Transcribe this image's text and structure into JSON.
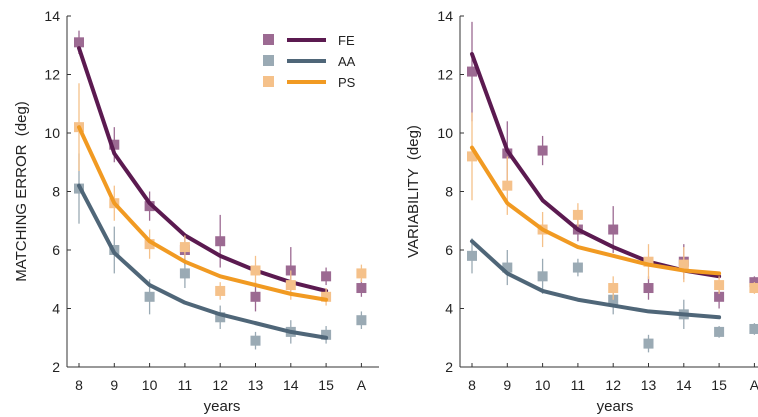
{
  "chart_data": [
    {
      "type": "line",
      "ylabel": "MATCHING ERROR  (deg)",
      "xlabel": "years",
      "categories": [
        "8",
        "9",
        "10",
        "11",
        "12",
        "13",
        "14",
        "15",
        "A"
      ],
      "yticks": [
        2,
        4,
        6,
        8,
        10,
        12,
        14
      ],
      "ylim": [
        2,
        14
      ],
      "legend_position": "top-right",
      "series": [
        {
          "name": "FE",
          "color": "#5b1a50",
          "marker_color": "#9c6a92",
          "fit": [
            12.9,
            9.3,
            7.6,
            6.5,
            5.8,
            5.3,
            4.9,
            4.6
          ],
          "points": [
            13.1,
            9.6,
            7.5,
            6.0,
            6.3,
            4.4,
            5.3,
            5.1,
            4.7
          ],
          "err": [
            0.4,
            0.6,
            0.5,
            0.5,
            0.9,
            0.5,
            0.8,
            0.3,
            0.3
          ]
        },
        {
          "name": "AA",
          "color": "#4f6678",
          "marker_color": "#9aaab4",
          "fit": [
            8.2,
            5.9,
            4.8,
            4.2,
            3.8,
            3.5,
            3.2,
            3.0
          ],
          "points": [
            8.1,
            6.0,
            4.4,
            5.2,
            3.7,
            2.9,
            3.2,
            3.1,
            3.6
          ],
          "err": [
            1.2,
            0.8,
            0.6,
            0.5,
            0.4,
            0.3,
            0.4,
            0.3,
            0.3
          ]
        },
        {
          "name": "PS",
          "color": "#f19a22",
          "marker_color": "#f5c18a",
          "fit": [
            10.2,
            7.6,
            6.3,
            5.6,
            5.1,
            4.8,
            4.5,
            4.3
          ],
          "points": [
            10.2,
            7.6,
            6.2,
            6.1,
            4.6,
            5.3,
            4.8,
            4.4,
            5.2
          ],
          "err": [
            1.5,
            0.6,
            0.5,
            0.4,
            0.3,
            0.5,
            0.5,
            0.3,
            0.3
          ]
        }
      ]
    },
    {
      "type": "line",
      "ylabel": "VARIABILITY  (deg)",
      "xlabel": "years",
      "categories": [
        "8",
        "9",
        "10",
        "11",
        "12",
        "13",
        "14",
        "15",
        "A"
      ],
      "yticks": [
        2,
        4,
        6,
        8,
        10,
        12,
        14
      ],
      "ylim": [
        2,
        14
      ],
      "series": [
        {
          "name": "FE",
          "color": "#5b1a50",
          "marker_color": "#9c6a92",
          "fit": [
            12.7,
            9.4,
            7.7,
            6.7,
            6.1,
            5.6,
            5.3,
            5.1
          ],
          "points": [
            12.1,
            9.3,
            9.4,
            6.7,
            6.7,
            4.7,
            5.6,
            4.4,
            4.9
          ],
          "err": [
            1.7,
            1.1,
            0.5,
            0.4,
            0.8,
            0.4,
            0.6,
            0.4,
            0.2
          ]
        },
        {
          "name": "AA",
          "color": "#4f6678",
          "marker_color": "#9aaab4",
          "fit": [
            6.3,
            5.2,
            4.6,
            4.3,
            4.1,
            3.9,
            3.8,
            3.7
          ],
          "points": [
            5.8,
            5.4,
            5.1,
            5.4,
            4.3,
            2.8,
            3.8,
            3.2,
            3.3
          ],
          "err": [
            0.6,
            0.6,
            0.6,
            0.3,
            0.5,
            0.3,
            0.5,
            0.2,
            0.2
          ]
        },
        {
          "name": "PS",
          "color": "#f19a22",
          "marker_color": "#f5c18a",
          "fit": [
            9.5,
            7.6,
            6.7,
            6.1,
            5.8,
            5.5,
            5.3,
            5.2
          ],
          "points": [
            9.2,
            8.2,
            6.7,
            7.2,
            4.7,
            5.6,
            5.5,
            4.8,
            4.7
          ],
          "err": [
            1.5,
            1.0,
            0.6,
            0.4,
            0.4,
            0.6,
            0.6,
            0.3,
            0.2
          ]
        }
      ]
    }
  ]
}
